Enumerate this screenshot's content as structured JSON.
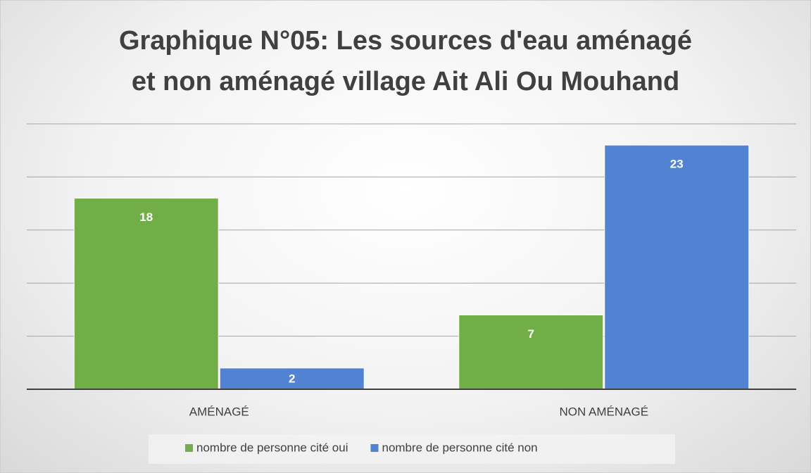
{
  "chart_data": {
    "type": "bar",
    "title": "Graphique N°05: Les sources d'eau aménagé\net non aménagé village Ait Ali Ou Mouhand",
    "categories": [
      "AMÉNAGÉ",
      "NON AMÉNAGÉ"
    ],
    "series": [
      {
        "name": "nombre de personne cité oui",
        "color": "#72ae48",
        "values": [
          18,
          7
        ]
      },
      {
        "name": "nombre de personne cité non",
        "color": "#5283d2",
        "values": [
          2,
          23
        ]
      }
    ],
    "ylim": [
      0,
      25
    ],
    "yticks": [
      0,
      5,
      10,
      15,
      20,
      25
    ],
    "grid": true,
    "legend": "bottom"
  }
}
